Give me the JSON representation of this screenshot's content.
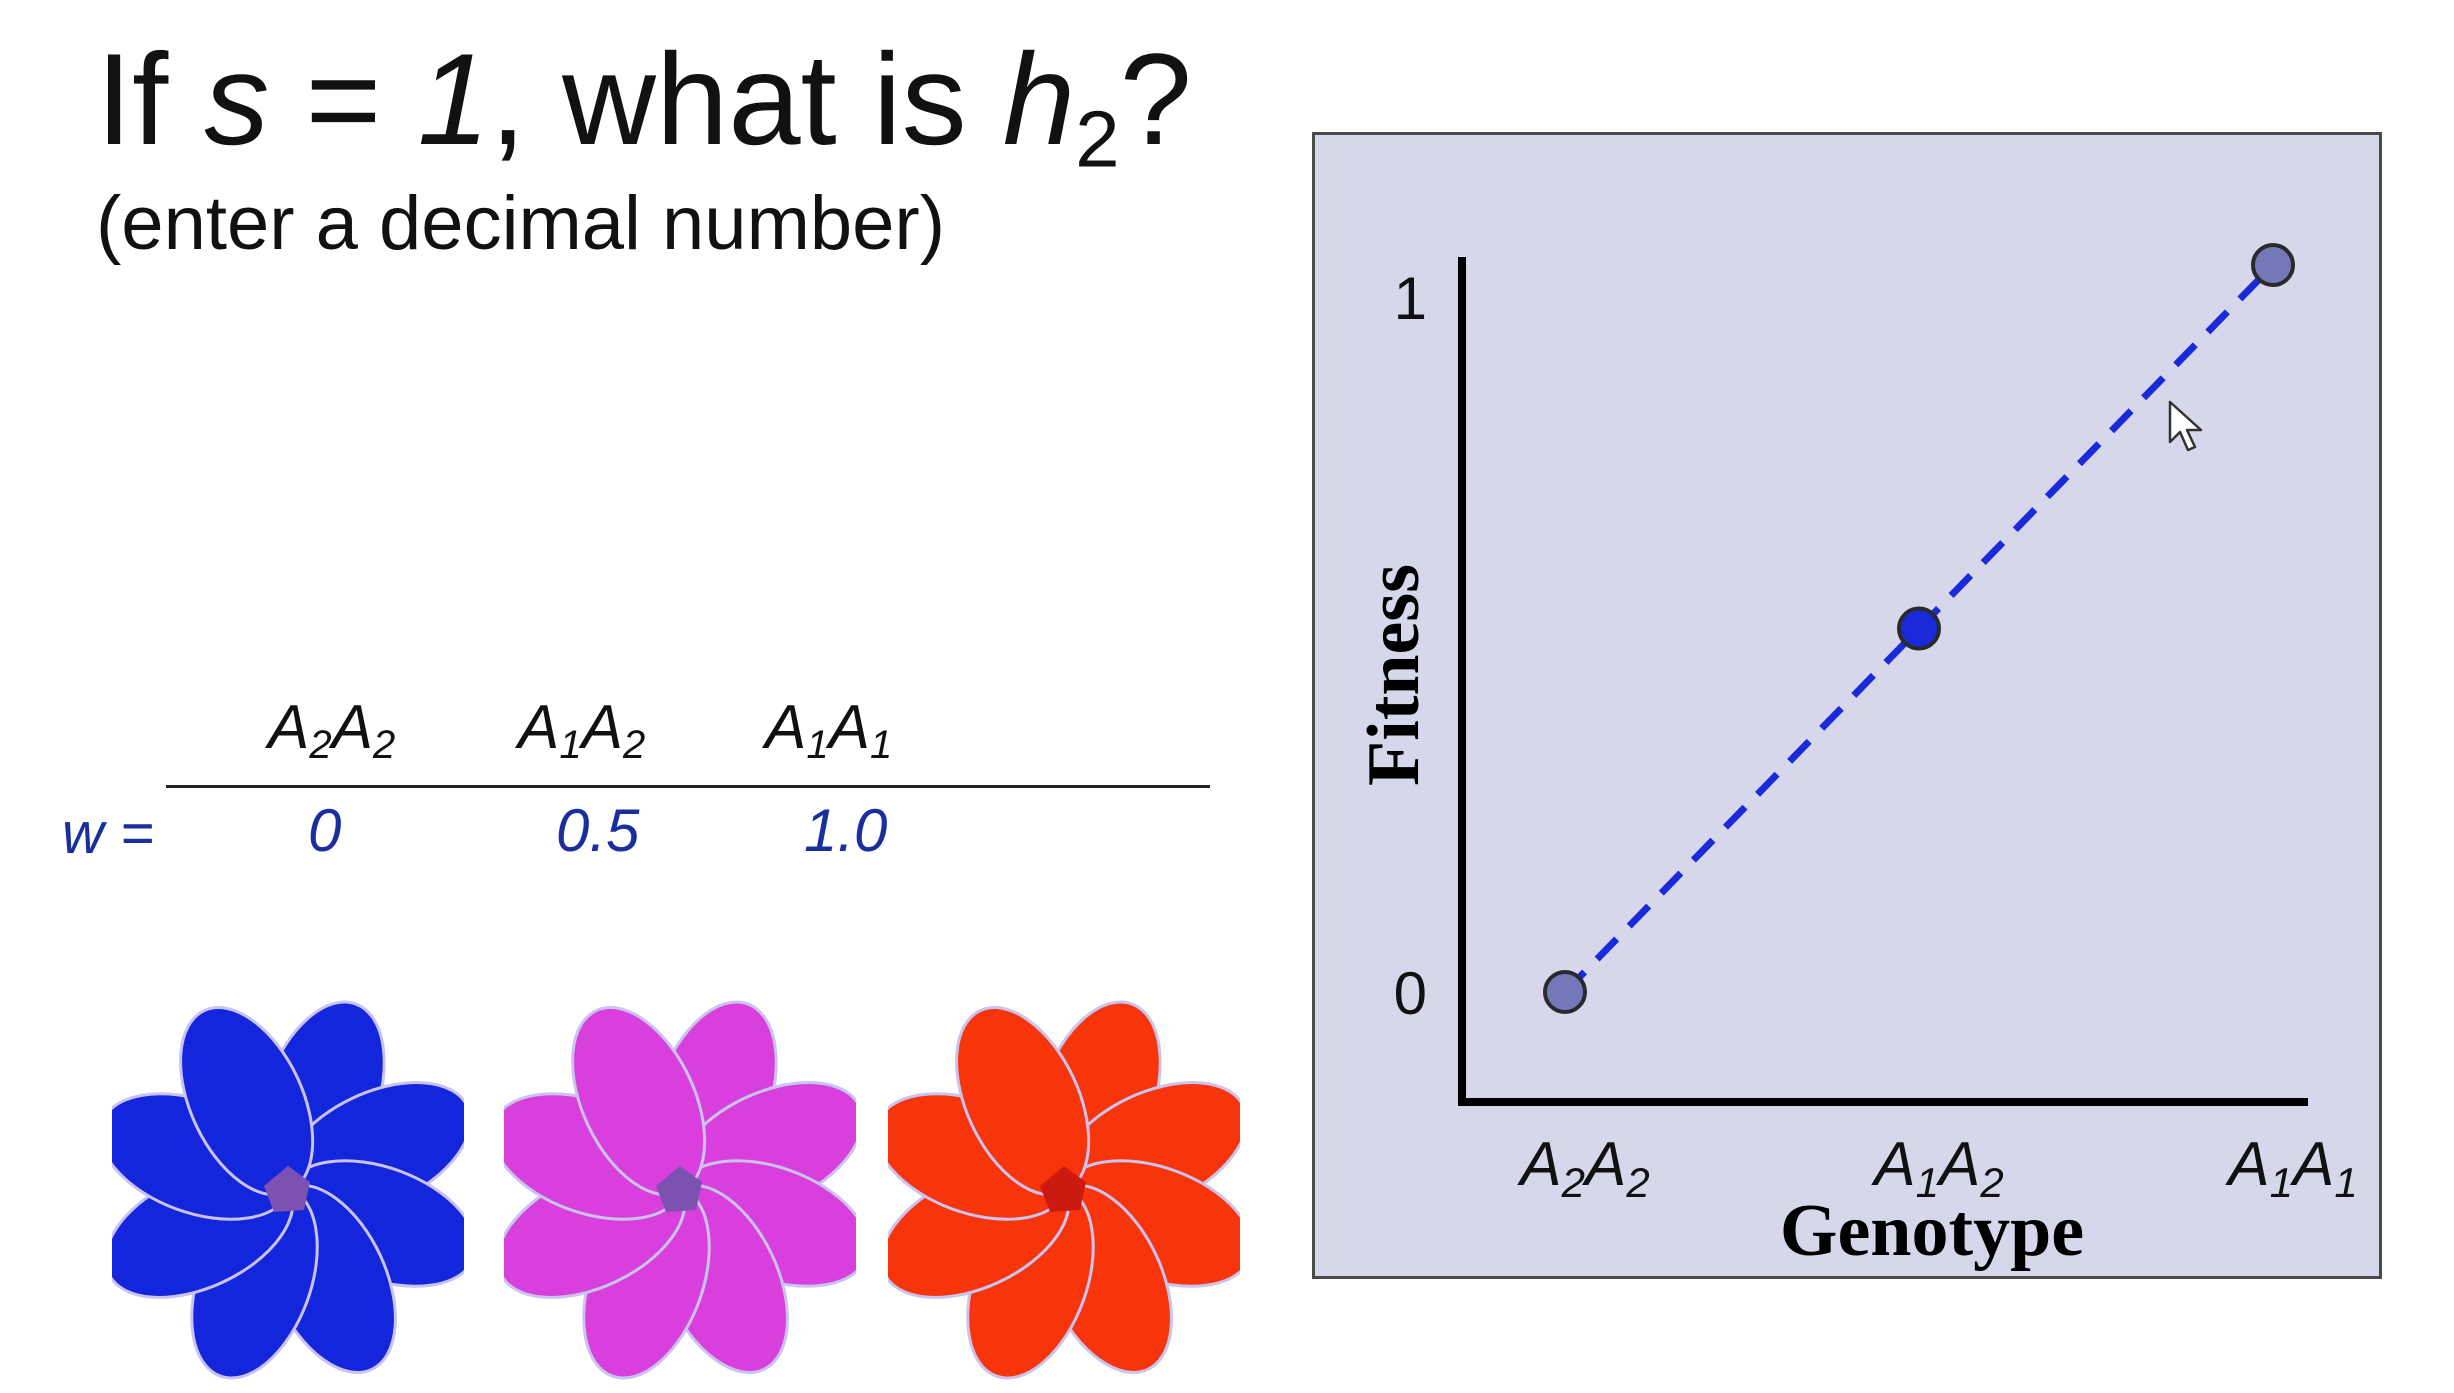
{
  "question": {
    "title_pre": "If ",
    "title_s": "s",
    "title_eq": " = ",
    "title_one": "1",
    "title_mid": ", what is ",
    "title_h": "h",
    "title_h_sub": "2",
    "title_end": "?",
    "subtitle": "(enter a decimal number)"
  },
  "fitness_table": {
    "row_label": "w =",
    "genotypes": [
      {
        "base1": "A",
        "sub1": "2",
        "base2": "A",
        "sub2": "2"
      },
      {
        "base1": "A",
        "sub1": "1",
        "base2": "A",
        "sub2": "2"
      },
      {
        "base1": "A",
        "sub1": "1",
        "base2": "A",
        "sub2": "1"
      }
    ],
    "values": [
      "0",
      "0.5",
      "1.0"
    ]
  },
  "flowers": [
    {
      "petal": "#1426dc",
      "center": "#7c52b0"
    },
    {
      "petal": "#d93fdc",
      "center": "#7c52b0"
    },
    {
      "petal": "#f8340a",
      "center": "#cc1a10"
    }
  ],
  "chart_data": {
    "type": "line",
    "xlabel": "Genotype",
    "ylabel": "Fitness",
    "categories": [
      {
        "base1": "A",
        "sub1": "2",
        "base2": "A",
        "sub2": "2"
      },
      {
        "base1": "A",
        "sub1": "1",
        "base2": "A",
        "sub2": "2"
      },
      {
        "base1": "A",
        "sub1": "1",
        "base2": "A",
        "sub2": "1"
      }
    ],
    "yticks": [
      "0",
      "1"
    ],
    "ylim": [
      0,
      1
    ],
    "values": [
      0,
      0.5,
      1.0
    ],
    "point_colors": [
      "#7478b8",
      "#1a2ad8",
      "#7478b8"
    ],
    "line_color": "#1a2ad8",
    "line_style": "dashed",
    "background": "#d7d7eb",
    "grid": false,
    "legend": "none"
  }
}
